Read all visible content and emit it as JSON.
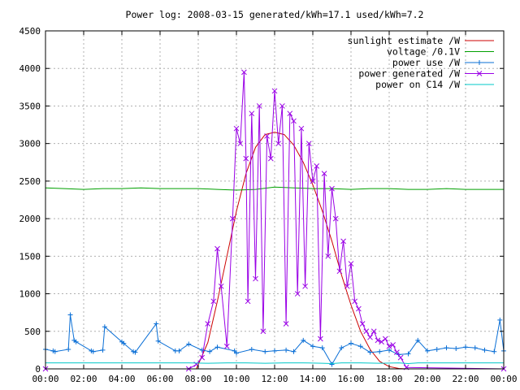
{
  "chart_data": {
    "type": "line",
    "title": "Power log: 2008-03-15 generated/kWh=17.1 used/kWh=7.2",
    "xlabel": "",
    "ylabel": "",
    "xlim": [
      0,
      24
    ],
    "ylim": [
      0,
      4500
    ],
    "x_ticks": [
      "00:00",
      "02:00",
      "04:00",
      "06:00",
      "08:00",
      "10:00",
      "12:00",
      "14:00",
      "16:00",
      "18:00",
      "20:00",
      "22:00",
      "00:00"
    ],
    "y_ticks": [
      "0",
      "500",
      "1000",
      "1500",
      "2000",
      "2500",
      "3000",
      "3500",
      "4000",
      "4500"
    ],
    "grid": true,
    "legend_position": "top-right",
    "series": [
      {
        "name": "sunlight estimate /W",
        "color": "#cc0000",
        "style": "line",
        "x": [
          0,
          7.9,
          8.5,
          9,
          9.5,
          10,
          10.5,
          11,
          11.5,
          12,
          12.5,
          13,
          13.5,
          14,
          14.5,
          15,
          15.5,
          16,
          16.5,
          17,
          17.5,
          18,
          18.5,
          18.9,
          24
        ],
        "y": [
          0,
          0,
          350,
          900,
          1500,
          2100,
          2600,
          2950,
          3120,
          3150,
          3120,
          2980,
          2750,
          2450,
          2100,
          1700,
          1250,
          850,
          500,
          260,
          100,
          30,
          5,
          0,
          0
        ]
      },
      {
        "name": "voltage /0.1V",
        "color": "#00a000",
        "style": "line",
        "x": [
          0,
          1,
          2,
          3,
          4,
          5,
          6,
          7,
          8,
          9,
          10,
          11,
          12,
          13,
          14,
          15,
          16,
          17,
          18,
          19,
          20,
          21,
          22,
          23,
          24
        ],
        "y": [
          2410,
          2400,
          2390,
          2400,
          2400,
          2410,
          2400,
          2400,
          2400,
          2390,
          2380,
          2390,
          2420,
          2410,
          2400,
          2400,
          2390,
          2400,
          2400,
          2390,
          2390,
          2400,
          2390,
          2390,
          2390
        ]
      },
      {
        "name": "power use /W",
        "color": "#0a6fd6",
        "style": "line-plus",
        "x": [
          0,
          0.4,
          0.5,
          1.2,
          1.3,
          1.5,
          1.6,
          2.4,
          2.5,
          3.0,
          3.1,
          4.0,
          4.1,
          4.6,
          4.7,
          5.8,
          5.9,
          6.8,
          7.0,
          7.5,
          8.2,
          8.6,
          9.0,
          9.9,
          10.0,
          10.8,
          11.5,
          12.0,
          12.6,
          13.0,
          13.5,
          14.0,
          14.5,
          15.0,
          15.5,
          16.0,
          16.5,
          17.0,
          17.5,
          18.0,
          18.5,
          19.0,
          19.5,
          20.0,
          20.5,
          21.0,
          21.5,
          22.0,
          22.5,
          23.0,
          23.5,
          23.8,
          24
        ],
        "y": [
          260,
          240,
          230,
          260,
          720,
          380,
          360,
          240,
          230,
          250,
          560,
          360,
          340,
          230,
          220,
          600,
          370,
          240,
          240,
          330,
          250,
          230,
          290,
          240,
          210,
          260,
          230,
          240,
          250,
          230,
          380,
          300,
          280,
          60,
          280,
          340,
          300,
          220,
          230,
          250,
          190,
          200,
          380,
          240,
          260,
          280,
          270,
          290,
          280,
          250,
          230,
          650,
          240
        ]
      },
      {
        "name": "power generated /W",
        "color": "#9a00e6",
        "style": "line-x",
        "x": [
          0,
          7.5,
          7.9,
          8.2,
          8.5,
          8.8,
          9.0,
          9.2,
          9.5,
          9.8,
          10.0,
          10.2,
          10.4,
          10.5,
          10.6,
          10.8,
          11.0,
          11.2,
          11.4,
          11.6,
          11.8,
          12.0,
          12.2,
          12.4,
          12.6,
          12.8,
          13.0,
          13.2,
          13.4,
          13.6,
          13.8,
          14.0,
          14.2,
          14.4,
          14.6,
          14.8,
          15.0,
          15.2,
          15.4,
          15.6,
          15.8,
          16.0,
          16.2,
          16.4,
          16.6,
          16.8,
          17.0,
          17.2,
          17.4,
          17.6,
          17.8,
          18.0,
          18.2,
          18.4,
          18.6,
          18.9,
          24
        ],
        "y": [
          0,
          0,
          60,
          150,
          600,
          900,
          1600,
          1100,
          300,
          2000,
          3200,
          3000,
          3950,
          2800,
          900,
          3400,
          1200,
          3500,
          500,
          3100,
          2800,
          3700,
          3000,
          3500,
          600,
          3400,
          3300,
          1000,
          3200,
          1100,
          3000,
          2500,
          2700,
          400,
          2600,
          1500,
          2400,
          2000,
          1300,
          1700,
          1100,
          1400,
          900,
          800,
          600,
          500,
          420,
          500,
          380,
          360,
          400,
          300,
          320,
          220,
          150,
          20,
          0
        ]
      },
      {
        "name": "power on C14 /W",
        "color": "#00c8c8",
        "style": "line",
        "x": [
          0,
          7.5,
          8.5,
          9.5,
          10.5,
          11.5,
          12.5,
          13.5,
          14.5,
          15.0,
          15.5,
          16.5,
          17.5,
          18.5,
          19.0,
          19.5,
          24
        ],
        "y": [
          80,
          80,
          75,
          80,
          80,
          75,
          80,
          80,
          75,
          70,
          80,
          80,
          75,
          80,
          70,
          80,
          80
        ]
      }
    ]
  }
}
